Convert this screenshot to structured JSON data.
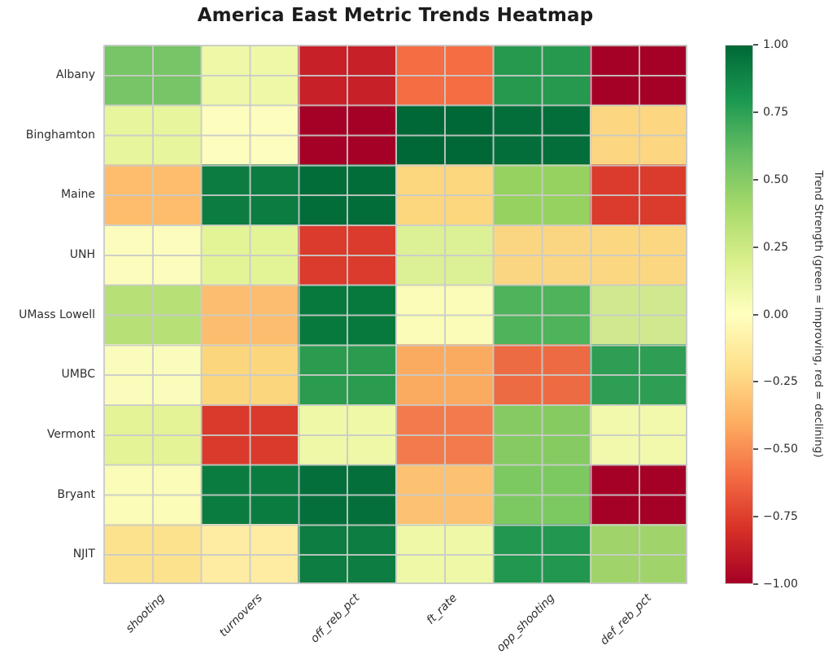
{
  "title": "America East Metric Trends Heatmap",
  "chart_data": {
    "type": "heatmap",
    "title": "America East Metric Trends Heatmap",
    "rows": [
      "Albany",
      "Binghamton",
      "Maine",
      "UNH",
      "UMass Lowell",
      "UMBC",
      "Vermont",
      "Bryant",
      "NJIT"
    ],
    "columns": [
      "shooting",
      "turnovers",
      "off_reb_pct",
      "ft_rate",
      "opp_shooting",
      "def_reb_pct"
    ],
    "values": [
      [
        0.5,
        0.1,
        -0.85,
        -0.6,
        0.75,
        -0.95
      ],
      [
        0.15,
        0.0,
        -1.0,
        1.0,
        0.95,
        -0.3
      ],
      [
        -0.35,
        0.85,
        0.95,
        -0.3,
        0.4,
        -0.75
      ],
      [
        0.0,
        0.2,
        -0.75,
        0.2,
        -0.3,
        -0.3
      ],
      [
        0.35,
        -0.35,
        0.9,
        0.0,
        0.6,
        0.25
      ],
      [
        0.0,
        -0.3,
        0.7,
        -0.4,
        -0.6,
        0.7
      ],
      [
        0.15,
        -0.75,
        0.1,
        -0.55,
        0.45,
        0.05
      ],
      [
        0.0,
        0.85,
        0.95,
        -0.35,
        0.5,
        -1.0
      ],
      [
        -0.15,
        -0.1,
        0.85,
        0.1,
        0.7,
        0.4
      ]
    ],
    "cell_colors": [
      [
        "#77c566",
        "#eff8a7",
        "#c72028",
        "#f46d43",
        "#27994f",
        "#a50026"
      ],
      [
        "#e7f59c",
        "#fdfdbe",
        "#a50026",
        "#006837",
        "#036e3a",
        "#fcd681"
      ],
      [
        "#fdbd6c",
        "#0d7c40",
        "#036d3a",
        "#fcd77e",
        "#95d25f",
        "#db3b2c"
      ],
      [
        "#fcfdbd",
        "#e3f497",
        "#da3b2c",
        "#dcf096",
        "#fbd682",
        "#fcd781"
      ],
      [
        "#b7e076",
        "#fdbd6e",
        "#07793d",
        "#fafcb7",
        "#4eb35b",
        "#d0e98f"
      ],
      [
        "#fafcbb",
        "#fcd67d",
        "#2b9b50",
        "#fbab60",
        "#ed6b42",
        "#2d9e53"
      ],
      [
        "#e4f396",
        "#d93a2c",
        "#eef8a6",
        "#f37a4c",
        "#85cb61",
        "#f2f9ac"
      ],
      [
        "#fafcb8",
        "#0b7c40",
        "#056f3b",
        "#fcc271",
        "#7cc961",
        "#a50026"
      ],
      [
        "#fde28d",
        "#feeca2",
        "#0d7d41",
        "#eff8a6",
        "#229750",
        "#a0d46b"
      ]
    ],
    "colormap": "RdYlGn",
    "vmin": -1.0,
    "vmax": 1.0,
    "grid": true,
    "gridline_color": "#c9cbc9",
    "colorbar": {
      "label": "Trend Strength (green = improving, red = declining)",
      "position": "right",
      "ticks": [
        "1.00",
        "0.75",
        "0.50",
        "0.25",
        "0.00",
        "−0.25",
        "−0.50",
        "−0.75",
        "−1.00"
      ],
      "top_color": "#006837",
      "mid_color": "#ffffbf",
      "bottom_color": "#a50026"
    }
  }
}
